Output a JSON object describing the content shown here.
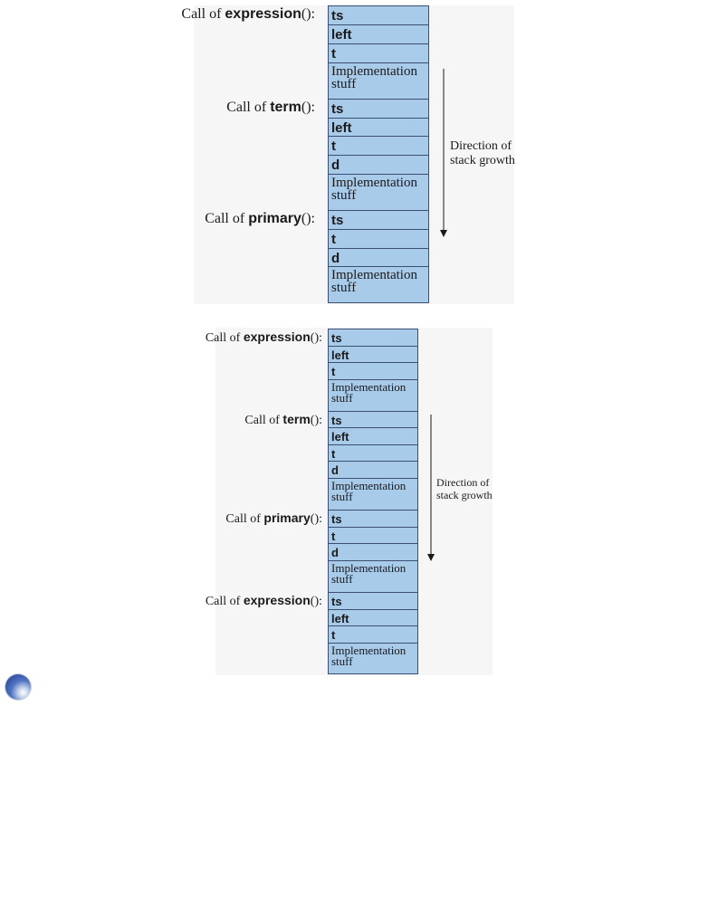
{
  "diagram_1": {
    "calls": [
      {
        "prefix": "Call of ",
        "fn": "expression",
        "suffix": "():"
      },
      {
        "prefix": "Call of ",
        "fn": "term",
        "suffix": "():"
      },
      {
        "prefix": "Call of ",
        "fn": "primary",
        "suffix": "():"
      }
    ],
    "cells": [
      "ts",
      "left",
      "t",
      "Implementation stuff",
      "ts",
      "left",
      "t",
      "d",
      "Implementation stuff",
      "ts",
      "t",
      "d",
      "Implementation stuff"
    ],
    "growth_line1": "Direction of",
    "growth_line2": "stack growth"
  },
  "diagram_2": {
    "calls": [
      {
        "prefix": "Call of ",
        "fn": "expression",
        "suffix": "():"
      },
      {
        "prefix": "Call of ",
        "fn": "term",
        "suffix": "():"
      },
      {
        "prefix": "Call of ",
        "fn": "primary",
        "suffix": "():"
      },
      {
        "prefix": "Call of ",
        "fn": "expression",
        "suffix": "():"
      }
    ],
    "cells": [
      "ts",
      "left",
      "t",
      "Implementation stuff",
      "ts",
      "left",
      "t",
      "d",
      "Implementation stuff",
      "ts",
      "t",
      "d",
      "Implementation stuff",
      "ts",
      "left",
      "t",
      "Implementation stuff"
    ],
    "growth_line1": "Direction of",
    "growth_line2": "stack growth"
  },
  "colors": {
    "cell_fill": "#a9cbea",
    "cell_border": "#3b4f72",
    "bullet": "#3a5fb0"
  },
  "icons": {
    "bullet": "blue-sphere-bullet-icon"
  }
}
